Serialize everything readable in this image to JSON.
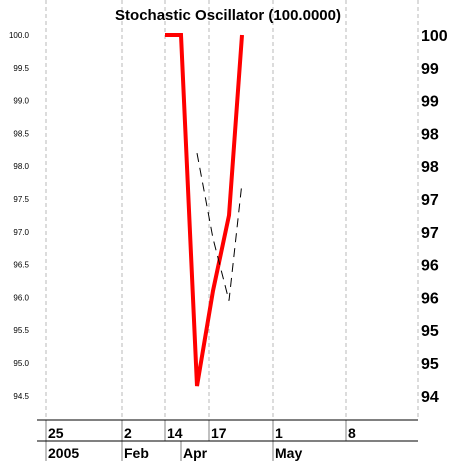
{
  "chart_data": {
    "type": "line",
    "title": "Stochastic Oscillator (100.0000)",
    "ylim": [
      94.0,
      100.25
    ],
    "left_ticks": [
      "100.0",
      "99.5",
      "99.0",
      "98.5",
      "98.0",
      "97.5",
      "97.0",
      "96.5",
      "96.0",
      "95.5",
      "95.0",
      "94.5"
    ],
    "right_ticks": [
      "100",
      "99",
      "99",
      "98",
      "98",
      "97",
      "97",
      "96",
      "96",
      "95",
      "95",
      "94"
    ],
    "x_day_ticks": [
      "25",
      "2",
      "14",
      "17",
      "1",
      "8"
    ],
    "x_month_ticks": [
      "2005",
      "Feb",
      "Apr",
      "May"
    ],
    "grid": true,
    "series": [
      {
        "color": "#ff0000",
        "style": "solid",
        "points": [
          [
            165,
            100.0
          ],
          [
            181,
            100.0
          ],
          [
            197,
            94.65
          ],
          [
            213,
            96.1
          ],
          [
            229,
            97.25
          ],
          [
            242,
            100.0
          ]
        ]
      },
      {
        "color": "#000000",
        "style": "dashed",
        "points": [
          [
            197,
            98.2
          ],
          [
            213,
            96.9
          ],
          [
            229,
            95.95
          ],
          [
            242,
            97.75
          ]
        ]
      }
    ]
  }
}
